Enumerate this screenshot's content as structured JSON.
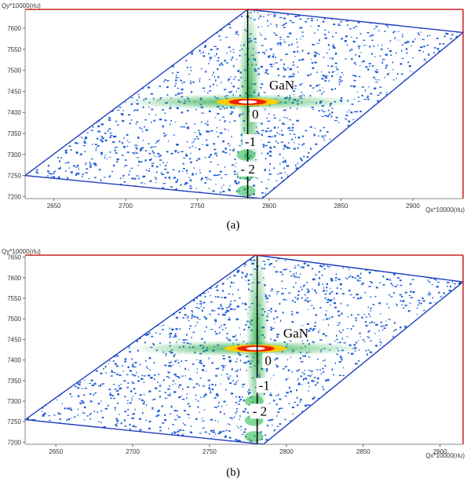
{
  "chart_data": [
    {
      "type": "heatmap",
      "panel_label": "(a)",
      "xlabel": "Qx*10000(rlu)",
      "ylabel": "Qy*10000(rlu)",
      "xlim": [
        2630,
        2935
      ],
      "ylim": [
        7195,
        7645
      ],
      "x_ticks": [
        2650,
        2700,
        2750,
        2800,
        2850,
        2900
      ],
      "y_ticks": [
        7200,
        7250,
        7300,
        7350,
        7400,
        7450,
        7500,
        7550,
        7600
      ],
      "scan_region": [
        [
          2630,
          7250
        ],
        [
          2785,
          7645
        ],
        [
          2935,
          7590
        ],
        [
          2795,
          7195
        ]
      ],
      "peak": {
        "x": 2785,
        "y": 7425
      },
      "vertical_line_x": 2785,
      "annotations": [
        {
          "text": "GaN",
          "x": 2800,
          "y": 7455
        },
        {
          "text": "0",
          "x": 2788,
          "y": 7385
        },
        {
          "text": "-1",
          "x": 2783,
          "y": 7320
        },
        {
          "text": "- 2",
          "x": 2780,
          "y": 7255
        }
      ]
    },
    {
      "type": "heatmap",
      "panel_label": "(b)",
      "xlabel": "Qx*10000(rlu)",
      "ylabel": "Qy*10000(rlu)",
      "xlim": [
        2630,
        2915
      ],
      "ylim": [
        7195,
        7655
      ],
      "x_ticks": [
        2650,
        2700,
        2750,
        2800,
        2850,
        2900
      ],
      "y_ticks": [
        7200,
        7250,
        7300,
        7350,
        7400,
        7450,
        7500,
        7550,
        7600,
        7650
      ],
      "scan_region": [
        [
          2630,
          7255
        ],
        [
          2780,
          7655
        ],
        [
          2915,
          7590
        ],
        [
          2785,
          7195
        ]
      ],
      "peak": {
        "x": 2780,
        "y": 7428
      },
      "vertical_line_x": 2781,
      "annotations": [
        {
          "text": "GaN",
          "x": 2798,
          "y": 7455
        },
        {
          "text": "0",
          "x": 2786,
          "y": 7388
        },
        {
          "text": "-1",
          "x": 2782,
          "y": 7328
        },
        {
          "text": "- 2",
          "x": 2778,
          "y": 7265
        }
      ]
    }
  ],
  "colors": {
    "frame": "#cc2222",
    "region_edge": "#1f3fbf",
    "speckle": "#1f5fd6",
    "vline": "#000000"
  }
}
